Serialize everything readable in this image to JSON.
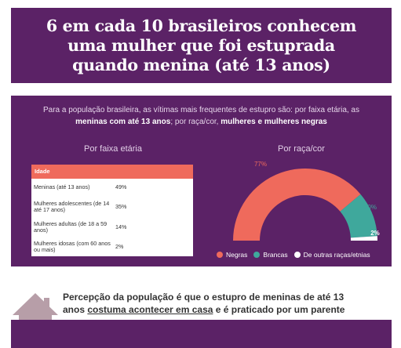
{
  "title": {
    "line1": "6 em cada 10 brasileiros conhecem",
    "line2": "uma mulher que foi estuprada",
    "line3": "quando menina (até 13 anos)"
  },
  "intro": {
    "part1": "Para a população brasileira, as vítimas mais frequentes de estupro são: por faixa etária, as ",
    "bold1": "meninas com até 13 anos",
    "part2": "; por raça/cor, ",
    "bold2": "mulheres e mulheres negras"
  },
  "age_section": {
    "title": "Por faixa etária"
  },
  "race_section": {
    "title": "Por raça/cor"
  },
  "colors": {
    "purple": "#5b2266",
    "coral": "#ef6a5c",
    "teal": "#3fa89c",
    "white": "#ffffff"
  },
  "chart_data": [
    {
      "type": "table",
      "header": "Idade",
      "rows": [
        {
          "label": "Meninas (até 13 anos)",
          "value": "49%"
        },
        {
          "label": "Mulheres adolescentes (de 14 até 17 anos)",
          "value": "35%"
        },
        {
          "label": "Mulheres adultas (de 18 a 59 anos)",
          "value": "14%"
        },
        {
          "label": "Mulheres idosas (com 60 anos ou mais)",
          "value": "2%"
        }
      ]
    },
    {
      "type": "pie",
      "variant": "semicircle-donut",
      "categories": [
        "Negras",
        "Brancas",
        "De outras raças/etnias"
      ],
      "values": [
        77,
        20,
        2
      ],
      "labels": [
        "77%",
        "20%",
        "2%"
      ],
      "colors": [
        "#ef6a5c",
        "#3fa89c",
        "#ffffff"
      ],
      "legend": "bottom"
    }
  ],
  "bottom": {
    "line1": "Percepção da população é que o estupro de meninas de até 13",
    "part_a": "anos ",
    "underlined": "costuma acontecer em casa",
    "part_b": " e é praticado por um parente",
    "icon": "house-icon"
  }
}
